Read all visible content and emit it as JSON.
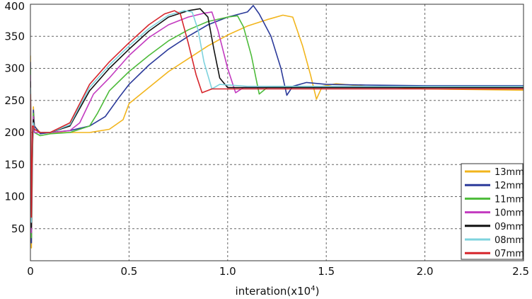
{
  "chart_data": {
    "type": "line",
    "xlabel": "interation(x10",
    "xlabel_sup": "4",
    "xlabel_close": ")",
    "ylabel": "",
    "xlim": [
      0,
      2.5
    ],
    "ylim": [
      0,
      400
    ],
    "x_ticks": [
      "0",
      "0.5",
      "1.0",
      "1.5",
      "2.0",
      "2.5"
    ],
    "x_tick_values": [
      0,
      0.5,
      1.0,
      1.5,
      2.0,
      2.5
    ],
    "y_ticks": [
      "50",
      "100",
      "150",
      "200",
      "250",
      "300",
      "350",
      "400"
    ],
    "y_tick_values": [
      50,
      100,
      150,
      200,
      250,
      300,
      350,
      400
    ],
    "grid": true,
    "legend_position": "bottom-right",
    "series": [
      {
        "name": "13mm",
        "color": "#F2B51C",
        "points": [
          [
            0.02,
            210
          ],
          [
            0.05,
            200
          ],
          [
            0.1,
            200
          ],
          [
            0.2,
            200
          ],
          [
            0.3,
            200
          ],
          [
            0.4,
            205
          ],
          [
            0.47,
            220
          ],
          [
            0.5,
            245
          ],
          [
            0.6,
            270
          ],
          [
            0.7,
            295
          ],
          [
            0.8,
            315
          ],
          [
            0.9,
            335
          ],
          [
            1.0,
            352
          ],
          [
            1.1,
            366
          ],
          [
            1.2,
            376
          ],
          [
            1.28,
            383
          ],
          [
            1.33,
            380
          ],
          [
            1.38,
            335
          ],
          [
            1.42,
            290
          ],
          [
            1.45,
            252
          ],
          [
            1.48,
            272
          ],
          [
            1.55,
            276
          ],
          [
            1.7,
            272
          ],
          [
            2.0,
            268
          ],
          [
            2.5,
            266
          ]
        ]
      },
      {
        "name": "12mm",
        "color": "#2B3A9A",
        "points": [
          [
            0.02,
            210
          ],
          [
            0.05,
            198
          ],
          [
            0.1,
            200
          ],
          [
            0.2,
            203
          ],
          [
            0.3,
            210
          ],
          [
            0.38,
            225
          ],
          [
            0.45,
            255
          ],
          [
            0.5,
            275
          ],
          [
            0.6,
            305
          ],
          [
            0.7,
            330
          ],
          [
            0.8,
            350
          ],
          [
            0.9,
            368
          ],
          [
            1.0,
            380
          ],
          [
            1.1,
            388
          ],
          [
            1.13,
            398
          ],
          [
            1.16,
            385
          ],
          [
            1.22,
            350
          ],
          [
            1.27,
            300
          ],
          [
            1.3,
            258
          ],
          [
            1.33,
            272
          ],
          [
            1.4,
            278
          ],
          [
            1.5,
            275
          ],
          [
            1.7,
            274
          ],
          [
            2.0,
            273
          ],
          [
            2.5,
            273
          ]
        ]
      },
      {
        "name": "11mm",
        "color": "#4DBB3A",
        "points": [
          [
            0.02,
            200
          ],
          [
            0.05,
            195
          ],
          [
            0.1,
            198
          ],
          [
            0.2,
            200
          ],
          [
            0.3,
            210
          ],
          [
            0.34,
            230
          ],
          [
            0.4,
            265
          ],
          [
            0.5,
            295
          ],
          [
            0.6,
            320
          ],
          [
            0.7,
            343
          ],
          [
            0.8,
            360
          ],
          [
            0.9,
            373
          ],
          [
            1.0,
            380
          ],
          [
            1.05,
            382
          ],
          [
            1.08,
            365
          ],
          [
            1.12,
            320
          ],
          [
            1.16,
            260
          ],
          [
            1.2,
            270
          ],
          [
            1.3,
            271
          ],
          [
            1.5,
            270
          ],
          [
            2.0,
            270
          ],
          [
            2.5,
            270
          ]
        ]
      },
      {
        "name": "10mm",
        "color": "#C33BC0",
        "points": [
          [
            0.02,
            200
          ],
          [
            0.05,
            200
          ],
          [
            0.1,
            200
          ],
          [
            0.2,
            203
          ],
          [
            0.25,
            215
          ],
          [
            0.32,
            260
          ],
          [
            0.4,
            285
          ],
          [
            0.5,
            320
          ],
          [
            0.6,
            348
          ],
          [
            0.7,
            368
          ],
          [
            0.8,
            380
          ],
          [
            0.88,
            386
          ],
          [
            0.92,
            388
          ],
          [
            0.95,
            360
          ],
          [
            1.0,
            300
          ],
          [
            1.04,
            262
          ],
          [
            1.08,
            270
          ],
          [
            1.2,
            270
          ],
          [
            1.5,
            270
          ],
          [
            2.0,
            270
          ],
          [
            2.5,
            270
          ]
        ]
      },
      {
        "name": "09mm",
        "color": "#111111",
        "points": [
          [
            0.02,
            205
          ],
          [
            0.05,
            200
          ],
          [
            0.1,
            200
          ],
          [
            0.2,
            210
          ],
          [
            0.3,
            265
          ],
          [
            0.4,
            300
          ],
          [
            0.5,
            330
          ],
          [
            0.6,
            358
          ],
          [
            0.7,
            380
          ],
          [
            0.8,
            390
          ],
          [
            0.86,
            393
          ],
          [
            0.9,
            380
          ],
          [
            0.93,
            330
          ],
          [
            0.96,
            285
          ],
          [
            1.0,
            270
          ],
          [
            1.1,
            270
          ],
          [
            1.5,
            270
          ],
          [
            2.0,
            270
          ],
          [
            2.5,
            270
          ]
        ]
      },
      {
        "name": "08mm",
        "color": "#7ED3DE",
        "points": [
          [
            0.02,
            205
          ],
          [
            0.05,
            200
          ],
          [
            0.1,
            200
          ],
          [
            0.2,
            212
          ],
          [
            0.3,
            270
          ],
          [
            0.4,
            305
          ],
          [
            0.5,
            335
          ],
          [
            0.6,
            362
          ],
          [
            0.7,
            383
          ],
          [
            0.78,
            390
          ],
          [
            0.82,
            388
          ],
          [
            0.85,
            360
          ],
          [
            0.88,
            310
          ],
          [
            0.92,
            268
          ],
          [
            0.96,
            275
          ],
          [
            1.1,
            272
          ],
          [
            1.5,
            272
          ],
          [
            2.0,
            272
          ],
          [
            2.5,
            272
          ]
        ]
      },
      {
        "name": "07mm",
        "color": "#D6252B",
        "points": [
          [
            0.02,
            205
          ],
          [
            0.05,
            200
          ],
          [
            0.1,
            200
          ],
          [
            0.2,
            215
          ],
          [
            0.3,
            275
          ],
          [
            0.4,
            310
          ],
          [
            0.5,
            340
          ],
          [
            0.6,
            368
          ],
          [
            0.68,
            385
          ],
          [
            0.73,
            390
          ],
          [
            0.76,
            385
          ],
          [
            0.8,
            340
          ],
          [
            0.84,
            290
          ],
          [
            0.87,
            262
          ],
          [
            0.92,
            268
          ],
          [
            1.1,
            268
          ],
          [
            1.5,
            268
          ],
          [
            2.0,
            268
          ],
          [
            2.5,
            268
          ]
        ]
      }
    ]
  }
}
